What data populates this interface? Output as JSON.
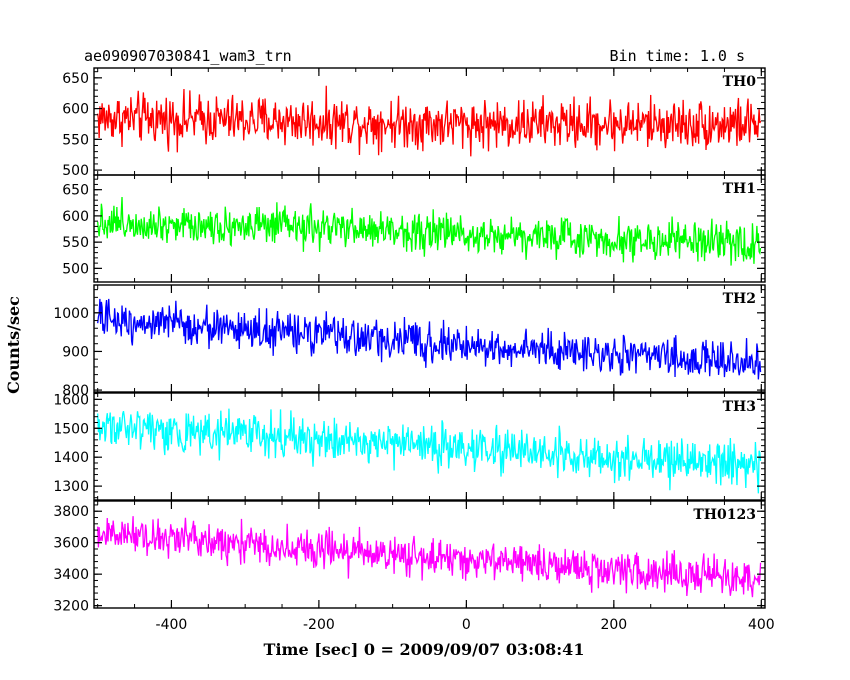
{
  "header": {
    "title": "ae090907030841_wam3_trn",
    "bin_time": "Bin time: 1.0 s"
  },
  "chart_data": {
    "type": "line",
    "ylabel": "Counts/sec",
    "xlabel": "Time [sec] 0 = 2009/09/07 03:08:41",
    "xlim": [
      -505,
      405
    ],
    "x_start": -500,
    "x_end": 399,
    "x_step": 1,
    "x_ticks": [
      -400,
      -200,
      0,
      200,
      400
    ],
    "panels": [
      {
        "name": "TH0",
        "color": "#ff0000",
        "ylim": [
          492,
          666
        ],
        "yticks": [
          500,
          550,
          600,
          650
        ],
        "trend": [
          {
            "x": -500,
            "y": 585
          },
          {
            "x": 0,
            "y": 575
          },
          {
            "x": 399,
            "y": 575
          }
        ],
        "noise_amplitude": 60
      },
      {
        "name": "TH1",
        "color": "#00ff00",
        "ylim": [
          474,
          678
        ],
        "yticks": [
          500,
          550,
          600,
          650
        ],
        "trend": [
          {
            "x": -500,
            "y": 590
          },
          {
            "x": 0,
            "y": 567
          },
          {
            "x": 399,
            "y": 545
          }
        ],
        "noise_amplitude": 55
      },
      {
        "name": "TH2",
        "color": "#0000ff",
        "ylim": [
          795,
          1072
        ],
        "yticks": [
          800,
          900,
          1000
        ],
        "trend": [
          {
            "x": -500,
            "y": 985
          },
          {
            "x": 0,
            "y": 915
          },
          {
            "x": 399,
            "y": 870
          }
        ],
        "noise_amplitude": 75
      },
      {
        "name": "TH3",
        "color": "#00ffff",
        "ylim": [
          1252,
          1622
        ],
        "yticks": [
          1300,
          1400,
          1500,
          1600
        ],
        "trend": [
          {
            "x": -500,
            "y": 1510
          },
          {
            "x": 0,
            "y": 1430
          },
          {
            "x": 399,
            "y": 1370
          }
        ],
        "noise_amplitude": 110
      },
      {
        "name": "TH0123",
        "color": "#ff00ff",
        "ylim": [
          3185,
          3865
        ],
        "yticks": [
          3200,
          3400,
          3600,
          3800
        ],
        "trend": [
          {
            "x": -500,
            "y": 3660
          },
          {
            "x": 0,
            "y": 3490
          },
          {
            "x": 399,
            "y": 3360
          }
        ],
        "noise_amplitude": 180
      }
    ]
  }
}
